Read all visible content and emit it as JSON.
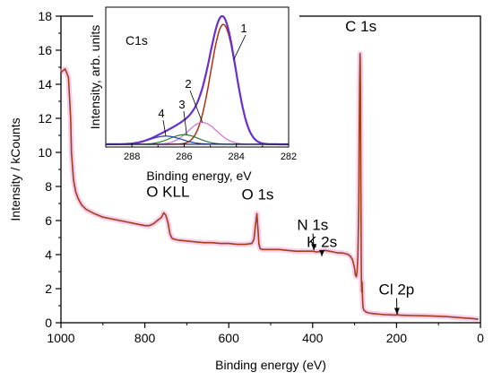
{
  "chart_data": [
    {
      "type": "line",
      "title": "",
      "xlabel": "Binding energy (eV)",
      "ylabel": "Intensity / kCounts",
      "xlim": [
        1000,
        0
      ],
      "ylim": [
        0,
        18
      ],
      "x_reversed": true,
      "grid": false,
      "x_ticks": [
        "1000",
        "800",
        "600",
        "400",
        "200",
        "0"
      ],
      "y_ticks": [
        "0",
        "2",
        "4",
        "6",
        "8",
        "10",
        "12",
        "14",
        "16",
        "18"
      ],
      "series": [
        {
          "color": "#a0401a",
          "glow_color": "#f4a6dc",
          "x": [
            1000,
            990,
            982,
            977,
            975,
            970,
            965,
            960,
            955,
            950,
            940,
            920,
            900,
            880,
            860,
            840,
            820,
            800,
            790,
            780,
            770,
            765,
            760,
            755,
            750,
            745,
            740,
            735,
            730,
            720,
            700,
            680,
            660,
            640,
            620,
            600,
            580,
            560,
            545,
            540,
            536,
            533,
            531,
            528,
            525,
            520,
            500,
            480,
            460,
            440,
            420,
            410,
            400,
            390,
            380,
            370,
            360,
            350,
            340,
            330,
            320,
            315,
            310,
            305,
            300,
            298,
            296,
            294,
            292,
            290,
            289,
            288,
            287,
            286.5,
            286,
            285.5,
            285,
            284.5,
            284,
            283.5,
            283,
            282,
            281,
            280,
            278,
            276,
            274,
            270,
            260,
            250,
            240,
            230,
            220,
            210,
            200,
            198,
            196,
            190,
            180,
            160,
            140,
            120,
            100,
            80,
            60,
            40,
            20,
            10,
            5
          ],
          "y": [
            14.7,
            14.9,
            14.4,
            12.0,
            10.0,
            8.4,
            7.7,
            7.35,
            7.1,
            6.9,
            6.65,
            6.4,
            6.2,
            6.1,
            6.0,
            5.9,
            5.8,
            5.7,
            5.7,
            5.8,
            6.0,
            6.1,
            6.2,
            6.45,
            6.3,
            5.9,
            5.2,
            4.95,
            4.9,
            4.85,
            4.8,
            4.75,
            4.7,
            4.7,
            4.65,
            4.65,
            4.6,
            4.6,
            4.65,
            4.9,
            5.8,
            6.4,
            5.7,
            4.6,
            4.35,
            4.3,
            4.3,
            4.3,
            4.25,
            4.2,
            4.2,
            4.2,
            4.2,
            4.15,
            4.2,
            4.25,
            4.2,
            4.15,
            4.1,
            4.1,
            4.05,
            4.0,
            3.9,
            3.7,
            3.2,
            2.8,
            2.7,
            3.0,
            4.0,
            7.0,
            11.0,
            14.0,
            15.8,
            15.3,
            13.5,
            11.0,
            8.0,
            5.0,
            3.0,
            2.2,
            1.8,
            2.4,
            1.4,
            0.9,
            0.75,
            0.7,
            0.65,
            0.6,
            0.55,
            0.52,
            0.5,
            0.48,
            0.47,
            0.46,
            0.45,
            0.55,
            0.45,
            0.44,
            0.43,
            0.42,
            0.41,
            0.4,
            0.38,
            0.36,
            0.32,
            0.28,
            0.25,
            0.22,
            0.2
          ]
        }
      ],
      "annotations": [
        {
          "text": "C 1s",
          "x": 285,
          "y": 17.1
        },
        {
          "text": "O 1s",
          "x": 531,
          "y": 7.25
        },
        {
          "text": "O KLL",
          "x": 745,
          "y": 7.4
        },
        {
          "text": "N 1s",
          "x": 400,
          "y": 5.45,
          "arrow_to": [
            397,
            4.25
          ]
        },
        {
          "text": "K 2s",
          "x": 378,
          "y": 4.45,
          "arrow_to": [
            378,
            3.9
          ]
        },
        {
          "text": "Cl 2p",
          "x": 200,
          "y": 1.65,
          "arrow_to": [
            199,
            0.5
          ]
        }
      ]
    },
    {
      "type": "line",
      "title": "C1s",
      "xlabel": "Binding energy, eV",
      "ylabel": "Intensity, arb. units",
      "xlim": [
        289,
        282
      ],
      "ylim": [
        0,
        1
      ],
      "x_reversed": true,
      "x_ticks": [
        "288",
        "286",
        "284",
        "282"
      ],
      "components": [
        {
          "label": "1",
          "color": "#b03010",
          "center": 284.5,
          "height": 0.88,
          "sigma": 0.48
        },
        {
          "label": "2",
          "color": "#d36ad6",
          "center": 285.3,
          "height": 0.16,
          "sigma": 0.55
        },
        {
          "label": "3",
          "color": "#2a7a2a",
          "center": 286.0,
          "height": 0.07,
          "sigma": 0.55
        },
        {
          "label": "4",
          "color": "#1f3fae",
          "center": 286.7,
          "height": 0.06,
          "sigma": 0.6
        }
      ],
      "envelope_color": "#6a2fcf",
      "background": 0.02
    }
  ]
}
